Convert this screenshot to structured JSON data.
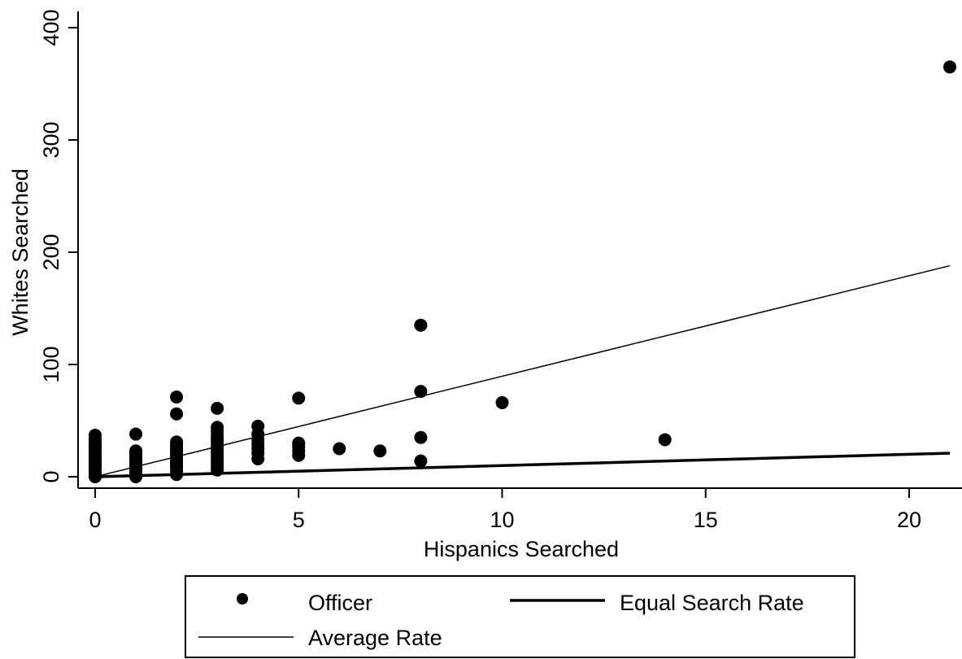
{
  "chart_data": {
    "type": "scatter",
    "title": "",
    "xlabel": "Hispanics Searched",
    "ylabel": "Whites Searched",
    "xlim": [
      -0.4,
      21.3
    ],
    "ylim": [
      -7,
      412
    ],
    "xticks": [
      0,
      5,
      10,
      15,
      20
    ],
    "yticks": [
      0,
      100,
      200,
      300,
      400
    ],
    "x_tick_labels": [
      "0",
      "5",
      "10",
      "15",
      "20"
    ],
    "y_tick_labels": [
      "0",
      "100",
      "200",
      "300",
      "400"
    ],
    "grid": false,
    "legend_position": "bottom",
    "colors": {
      "points": "#000000",
      "lines": "#000000",
      "background": "#ffffff"
    },
    "series": [
      {
        "name": "Officer",
        "kind": "points",
        "points": [
          [
            0,
            0
          ],
          [
            0,
            2
          ],
          [
            0,
            4
          ],
          [
            0,
            6
          ],
          [
            0,
            8
          ],
          [
            0,
            10
          ],
          [
            0,
            12
          ],
          [
            0,
            14
          ],
          [
            0,
            16
          ],
          [
            0,
            18
          ],
          [
            0,
            20
          ],
          [
            0,
            22
          ],
          [
            0,
            24
          ],
          [
            0,
            26
          ],
          [
            0,
            28
          ],
          [
            0,
            30
          ],
          [
            0,
            33
          ],
          [
            0,
            37
          ],
          [
            1,
            0
          ],
          [
            1,
            3
          ],
          [
            1,
            5
          ],
          [
            1,
            7
          ],
          [
            1,
            9
          ],
          [
            1,
            11
          ],
          [
            1,
            13
          ],
          [
            1,
            15
          ],
          [
            1,
            17
          ],
          [
            1,
            19
          ],
          [
            1,
            21
          ],
          [
            1,
            23
          ],
          [
            1,
            38
          ],
          [
            2,
            2
          ],
          [
            2,
            5
          ],
          [
            2,
            8
          ],
          [
            2,
            10
          ],
          [
            2,
            12
          ],
          [
            2,
            14
          ],
          [
            2,
            16
          ],
          [
            2,
            18
          ],
          [
            2,
            20
          ],
          [
            2,
            22
          ],
          [
            2,
            24
          ],
          [
            2,
            26
          ],
          [
            2,
            28
          ],
          [
            2,
            31
          ],
          [
            2,
            56
          ],
          [
            2,
            71
          ],
          [
            3,
            6
          ],
          [
            3,
            9
          ],
          [
            3,
            12
          ],
          [
            3,
            15
          ],
          [
            3,
            18
          ],
          [
            3,
            21
          ],
          [
            3,
            24
          ],
          [
            3,
            27
          ],
          [
            3,
            30
          ],
          [
            3,
            33
          ],
          [
            3,
            36
          ],
          [
            3,
            40
          ],
          [
            3,
            44
          ],
          [
            3,
            61
          ],
          [
            4,
            16
          ],
          [
            4,
            21
          ],
          [
            4,
            25
          ],
          [
            4,
            29
          ],
          [
            4,
            33
          ],
          [
            4,
            38
          ],
          [
            4,
            45
          ],
          [
            5,
            19
          ],
          [
            5,
            23
          ],
          [
            5,
            27
          ],
          [
            5,
            30
          ],
          [
            5,
            70
          ],
          [
            6,
            25
          ],
          [
            7,
            23
          ],
          [
            8,
            14
          ],
          [
            8,
            35
          ],
          [
            8,
            76
          ],
          [
            8,
            135
          ],
          [
            10,
            66
          ],
          [
            14,
            33
          ],
          [
            21,
            365
          ]
        ]
      },
      {
        "name": "Equal Search Rate",
        "kind": "line",
        "x": [
          0,
          21
        ],
        "y": [
          0,
          21
        ],
        "stroke": "thick"
      },
      {
        "name": "Average Rate",
        "kind": "line",
        "x": [
          0,
          21
        ],
        "y": [
          0,
          188
        ],
        "stroke": "thin"
      }
    ]
  }
}
